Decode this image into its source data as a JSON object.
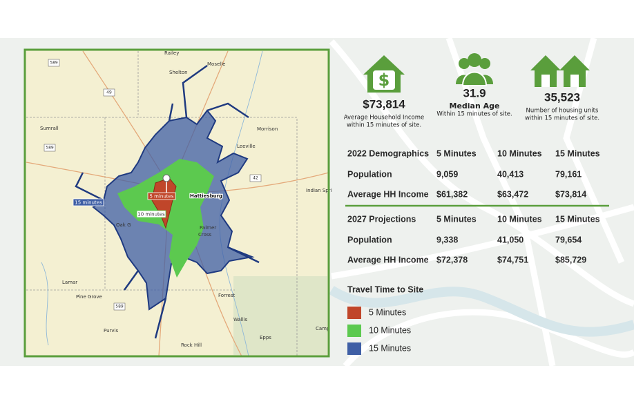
{
  "map": {
    "places": [
      "Railey",
      "Shelton",
      "Moselle",
      "Sumrall",
      "Morrison",
      "Leeville",
      "Hattiesburg",
      "Indian Spri",
      "Oak G",
      "Palmer",
      "Cross",
      "Lamar",
      "Pine Grove",
      "Forrest",
      "Wallis",
      "Purvis",
      "Rock Hill",
      "Epps",
      "Camp"
    ],
    "roads": [
      "589",
      "49",
      "589",
      "42",
      "589"
    ],
    "tags": [
      "5 minutes",
      "10 minutes",
      "15 minutes"
    ]
  },
  "stats": [
    {
      "value": "$73,814",
      "lines": [
        "Average Household Income",
        "within 15 minutes of site."
      ]
    },
    {
      "value": "31.9",
      "lines": [
        "Median Age",
        "Within 15 minutes of site."
      ]
    },
    {
      "value": "35,523",
      "lines": [
        "Number of housing units",
        "within 15 minutes of site."
      ]
    }
  ],
  "tables": [
    {
      "header": [
        "2022 Demographics",
        "5 Minutes",
        "10 Minutes",
        "15 Minutes"
      ],
      "rows": [
        [
          "Population",
          "9,059",
          "40,413",
          "79,161"
        ],
        [
          "Average HH Income",
          "$61,382",
          "$63,472",
          "$73,814"
        ]
      ]
    },
    {
      "header": [
        "2027 Projections",
        "5 Minutes",
        "10 Minutes",
        "15 Minutes"
      ],
      "rows": [
        [
          "Population",
          "9,338",
          "41,050",
          "79,654"
        ],
        [
          "Average HH Income",
          "$72,378",
          "$74,751",
          "$85,729"
        ]
      ]
    }
  ],
  "legend": {
    "title": "Travel Time to Site",
    "items": [
      {
        "label": "5 Minutes",
        "color": "#c0462a"
      },
      {
        "label": "10 Minutes",
        "color": "#5cc94f"
      },
      {
        "label": "15 Minutes",
        "color": "#3f5fa5"
      }
    ]
  }
}
